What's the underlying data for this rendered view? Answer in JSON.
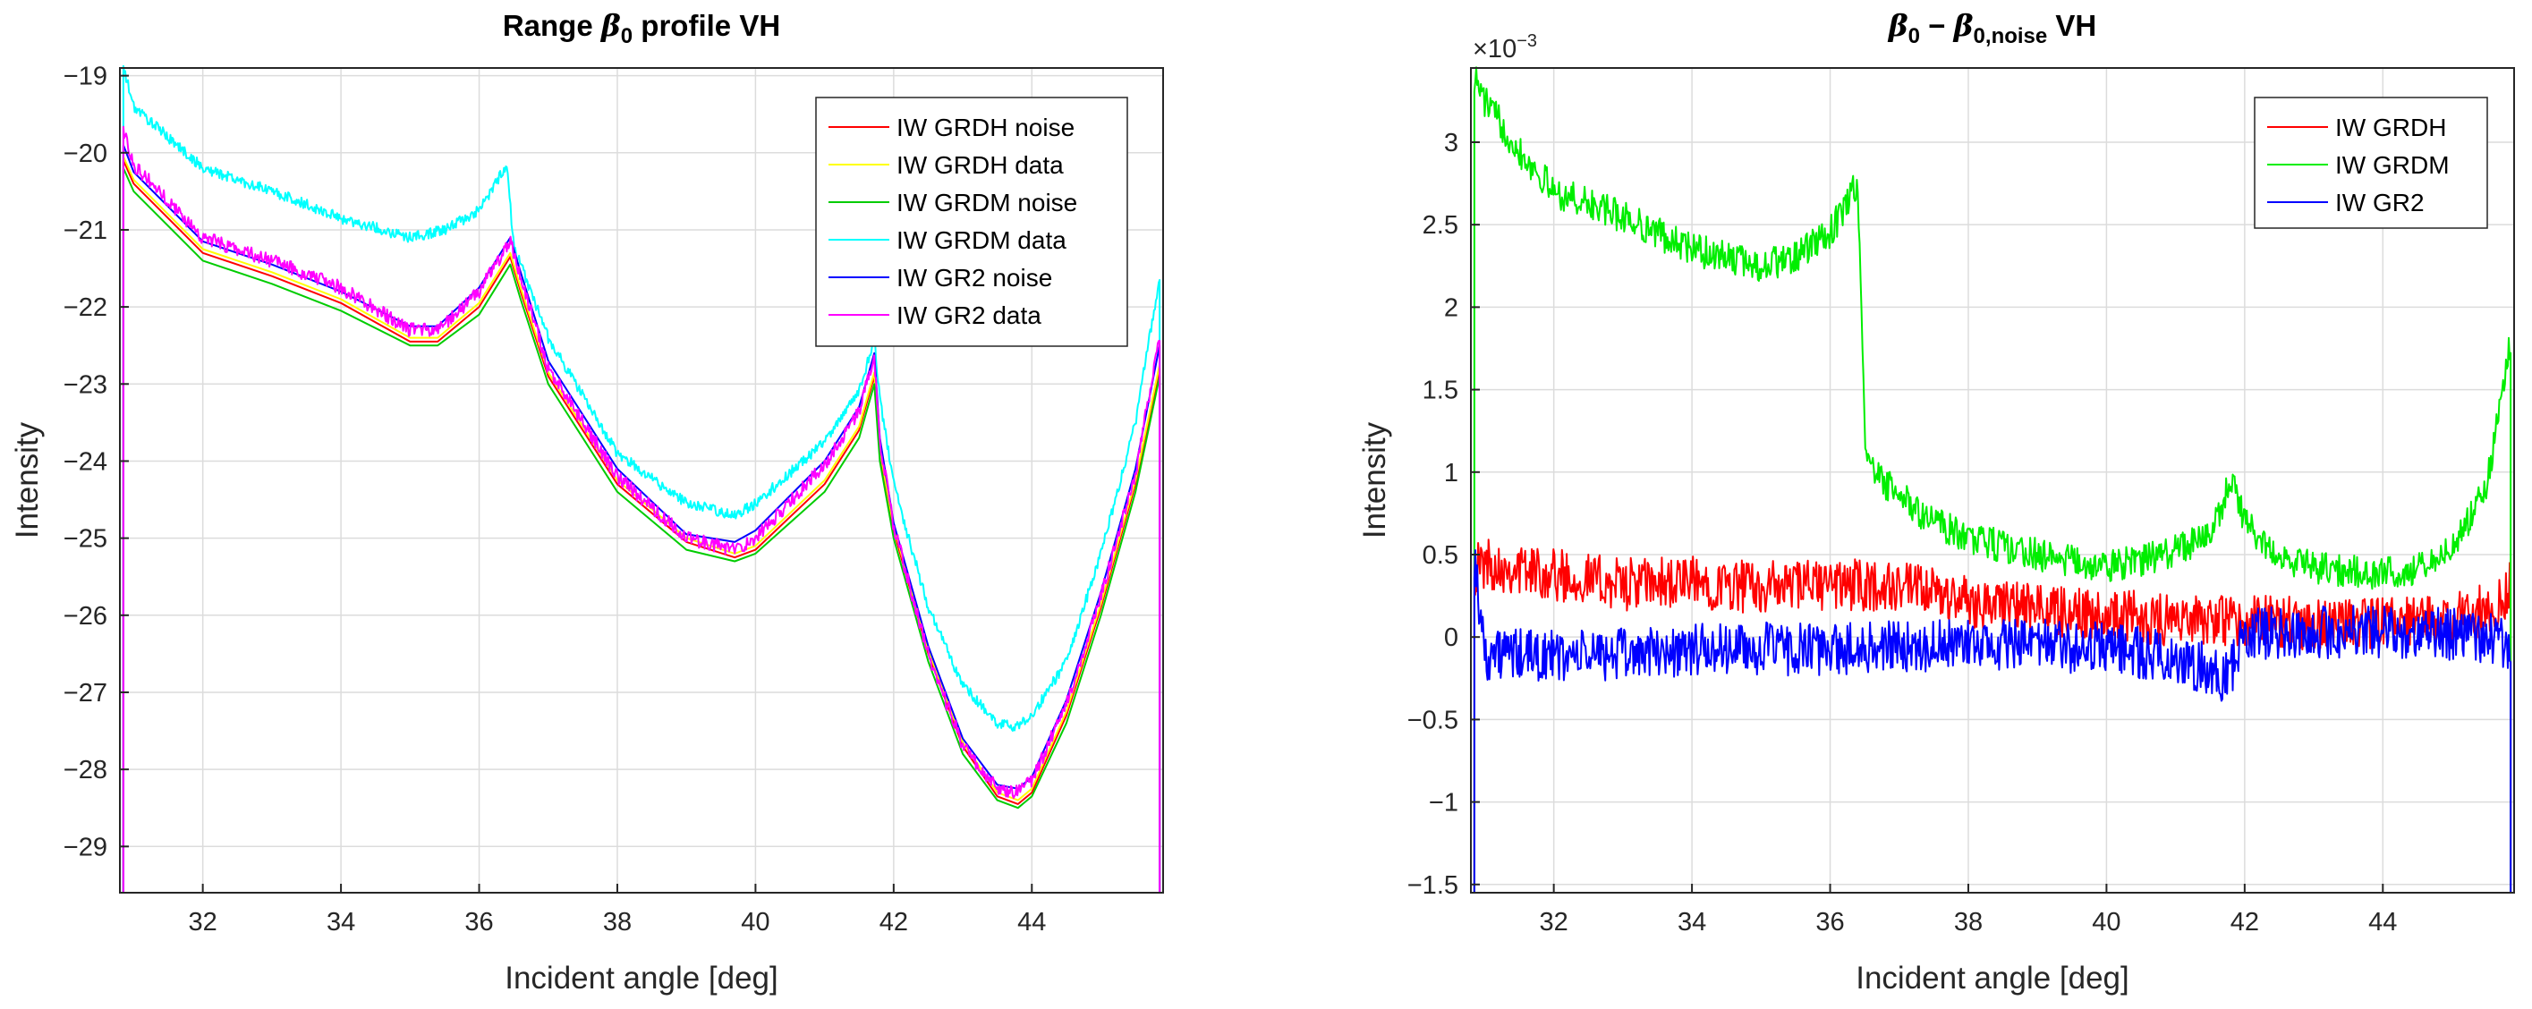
{
  "chart_data": [
    {
      "type": "line",
      "title": "Range β0 profile VH",
      "title_parts": {
        "prefix": "Range ",
        "symbol": "β",
        "subscript": "0",
        "suffix": " profile VH"
      },
      "xlabel": "Incident angle [deg]",
      "ylabel": "Intensity",
      "xlim": [
        30.8,
        45.9
      ],
      "ylim": [
        -29.6,
        -18.9
      ],
      "xticks": [
        32,
        34,
        36,
        38,
        40,
        42,
        44
      ],
      "yticks": [
        -29,
        -28,
        -27,
        -26,
        -25,
        -24,
        -23,
        -22,
        -21,
        -20,
        -19
      ],
      "grid": true,
      "legend_position": "top-right",
      "series": [
        {
          "name": "IW GRDH noise",
          "color": "#ff0000",
          "noise": 0.0,
          "x": [
            30.85,
            31.0,
            32.0,
            33.0,
            34.0,
            35.0,
            35.4,
            36.0,
            36.45,
            36.6,
            37.0,
            38.0,
            39.0,
            39.7,
            40.0,
            41.0,
            41.5,
            41.72,
            41.8,
            42.0,
            42.5,
            43.0,
            43.5,
            43.8,
            44.0,
            44.5,
            45.0,
            45.5,
            45.85
          ],
          "y": [
            -20.1,
            -20.4,
            -21.3,
            -21.6,
            -21.95,
            -22.45,
            -22.45,
            -22.0,
            -21.35,
            -21.8,
            -22.9,
            -24.3,
            -25.05,
            -25.25,
            -25.15,
            -24.3,
            -23.6,
            -22.9,
            -23.9,
            -24.9,
            -26.5,
            -27.7,
            -28.35,
            -28.45,
            -28.3,
            -27.3,
            -25.9,
            -24.3,
            -22.8
          ]
        },
        {
          "name": "IW GRDH data",
          "color": "#ffff00",
          "noise": 0.0,
          "x": [
            30.85,
            31.0,
            32.0,
            33.0,
            34.0,
            35.0,
            35.4,
            36.0,
            36.45,
            36.6,
            37.0,
            38.0,
            39.0,
            39.7,
            40.0,
            41.0,
            41.5,
            41.72,
            41.8,
            42.0,
            42.5,
            43.0,
            43.5,
            43.8,
            44.0,
            44.5,
            45.0,
            45.5,
            45.85
          ],
          "y": [
            -20.05,
            -20.35,
            -21.25,
            -21.55,
            -21.9,
            -22.4,
            -22.4,
            -21.95,
            -21.3,
            -21.75,
            -22.85,
            -24.25,
            -25.0,
            -25.2,
            -25.1,
            -24.25,
            -23.55,
            -22.85,
            -23.85,
            -24.85,
            -26.45,
            -27.65,
            -28.3,
            -28.4,
            -28.25,
            -27.25,
            -25.85,
            -24.25,
            -22.75
          ]
        },
        {
          "name": "IW GRDM noise",
          "color": "#00cc00",
          "noise": 0.0,
          "x": [
            30.85,
            31.0,
            32.0,
            33.0,
            34.0,
            35.0,
            35.4,
            36.0,
            36.45,
            36.6,
            37.0,
            38.0,
            39.0,
            39.7,
            40.0,
            41.0,
            41.5,
            41.72,
            41.8,
            42.0,
            42.5,
            43.0,
            43.5,
            43.8,
            44.0,
            44.5,
            45.0,
            45.5,
            45.85
          ],
          "y": [
            -20.2,
            -20.5,
            -21.4,
            -21.7,
            -22.05,
            -22.5,
            -22.5,
            -22.1,
            -21.45,
            -21.9,
            -23.0,
            -24.4,
            -25.15,
            -25.3,
            -25.2,
            -24.4,
            -23.7,
            -23.0,
            -24.0,
            -25.0,
            -26.6,
            -27.8,
            -28.4,
            -28.5,
            -28.35,
            -27.4,
            -26.0,
            -24.4,
            -22.9
          ]
        },
        {
          "name": "IW GRDM data",
          "color": "#00ffff",
          "noise": 0.07,
          "x": [
            30.85,
            31.0,
            32.0,
            33.0,
            34.0,
            35.0,
            35.5,
            36.0,
            36.4,
            36.5,
            37.0,
            38.0,
            39.0,
            39.7,
            40.0,
            41.0,
            41.5,
            41.72,
            41.8,
            42.0,
            42.5,
            43.0,
            43.5,
            43.8,
            44.0,
            44.5,
            45.0,
            45.5,
            45.85
          ],
          "y": [
            -18.9,
            -19.4,
            -20.2,
            -20.5,
            -20.85,
            -21.1,
            -21.0,
            -20.75,
            -20.15,
            -21.2,
            -22.4,
            -23.9,
            -24.55,
            -24.7,
            -24.55,
            -23.75,
            -23.1,
            -22.4,
            -23.2,
            -24.3,
            -25.9,
            -26.9,
            -27.4,
            -27.45,
            -27.3,
            -26.6,
            -25.2,
            -23.5,
            -21.6
          ]
        },
        {
          "name": "IW GR2 noise",
          "color": "#0000ff",
          "noise": 0.0,
          "x": [
            30.85,
            31.0,
            32.0,
            33.0,
            34.0,
            35.0,
            35.4,
            36.0,
            36.45,
            36.6,
            37.0,
            38.0,
            39.0,
            39.7,
            40.0,
            41.0,
            41.5,
            41.72,
            41.8,
            42.0,
            42.5,
            43.0,
            43.5,
            43.8,
            44.0,
            44.5,
            45.0,
            45.5,
            45.85
          ],
          "y": [
            -19.9,
            -20.25,
            -21.15,
            -21.45,
            -21.8,
            -22.25,
            -22.25,
            -21.75,
            -21.1,
            -21.55,
            -22.7,
            -24.1,
            -24.95,
            -25.05,
            -24.9,
            -24.0,
            -23.3,
            -22.6,
            -23.7,
            -24.8,
            -26.4,
            -27.6,
            -28.2,
            -28.25,
            -28.1,
            -27.1,
            -25.7,
            -24.1,
            -22.5
          ]
        },
        {
          "name": "IW GR2 data",
          "color": "#ff00ff",
          "noise": 0.09,
          "x": [
            30.85,
            31.0,
            32.0,
            33.0,
            34.0,
            35.0,
            35.4,
            36.0,
            36.45,
            36.6,
            37.0,
            38.0,
            39.0,
            39.7,
            40.0,
            41.0,
            41.5,
            41.72,
            41.8,
            42.0,
            42.5,
            43.0,
            43.5,
            43.8,
            44.0,
            44.5,
            45.0,
            45.5,
            45.85
          ],
          "y": [
            -19.7,
            -20.15,
            -21.1,
            -21.4,
            -21.75,
            -22.3,
            -22.3,
            -21.8,
            -21.15,
            -21.6,
            -22.8,
            -24.2,
            -25.0,
            -25.15,
            -25.0,
            -24.05,
            -23.35,
            -22.65,
            -23.75,
            -24.85,
            -26.5,
            -27.7,
            -28.25,
            -28.3,
            -28.15,
            -27.15,
            -25.75,
            -24.15,
            -22.4
          ]
        }
      ]
    },
    {
      "type": "line",
      "title": "β0 − β0,noise VH",
      "title_parts": {
        "symbol": "β",
        "subscript": "0",
        "minus": " − ",
        "symbol2": "β",
        "subscript2": "0,noise",
        "suffix": " VH"
      },
      "xlabel": "Incident angle [deg]",
      "ylabel": "Intensity",
      "y_multiplier": "×10",
      "y_exponent": "−3",
      "xlim": [
        30.8,
        45.9
      ],
      "ylim": [
        -1.55,
        3.45
      ],
      "xticks": [
        32,
        34,
        36,
        38,
        40,
        42,
        44
      ],
      "yticks": [
        -1.5,
        -1,
        -0.5,
        0,
        0.5,
        1,
        1.5,
        2,
        2.5,
        3
      ],
      "ytick_labels": [
        "-1.5",
        "-1",
        "-0.5",
        "0",
        "0.5",
        "1",
        "1.5",
        "2",
        "2.5",
        "3"
      ],
      "grid": true,
      "legend_position": "top-right",
      "series": [
        {
          "name": "IW GRDH",
          "color": "#ff0000",
          "noise": 0.16,
          "x": [
            30.85,
            31.0,
            32.0,
            33.0,
            34.0,
            35.0,
            36.0,
            37.0,
            38.0,
            39.0,
            40.0,
            41.0,
            42.0,
            43.0,
            44.0,
            45.0,
            45.6,
            45.85
          ],
          "y": [
            0.4,
            0.45,
            0.38,
            0.32,
            0.33,
            0.3,
            0.32,
            0.3,
            0.22,
            0.17,
            0.14,
            0.1,
            0.1,
            0.08,
            0.08,
            0.1,
            0.18,
            0.3
          ]
        },
        {
          "name": "IW GRDM",
          "color": "#00ee00",
          "noise": 0.1,
          "x": [
            30.85,
            31.0,
            31.5,
            32.0,
            33.0,
            34.0,
            35.0,
            35.5,
            36.0,
            36.4,
            36.5,
            36.6,
            37.0,
            37.5,
            38.0,
            39.0,
            40.0,
            41.0,
            41.5,
            41.8,
            42.0,
            42.5,
            43.0,
            44.0,
            44.5,
            45.0,
            45.5,
            45.85
          ],
          "y": [
            3.4,
            3.25,
            2.95,
            2.7,
            2.55,
            2.35,
            2.25,
            2.3,
            2.45,
            2.75,
            1.25,
            1.0,
            0.85,
            0.7,
            0.6,
            0.5,
            0.42,
            0.52,
            0.62,
            0.95,
            0.7,
            0.5,
            0.42,
            0.38,
            0.42,
            0.55,
            0.9,
            1.8
          ]
        },
        {
          "name": "IW GR2",
          "color": "#0000ff",
          "noise": 0.16,
          "x": [
            30.85,
            31.0,
            32.0,
            33.0,
            34.0,
            35.0,
            36.0,
            37.0,
            38.0,
            39.0,
            40.0,
            41.0,
            41.75,
            42.0,
            43.0,
            44.0,
            45.0,
            45.6,
            45.85
          ],
          "y": [
            0.5,
            -0.1,
            -0.12,
            -0.1,
            -0.08,
            -0.07,
            -0.08,
            -0.05,
            -0.05,
            -0.05,
            -0.07,
            -0.12,
            -0.25,
            0.02,
            0.03,
            0.03,
            0.02,
            0.0,
            -0.05
          ]
        }
      ]
    }
  ]
}
